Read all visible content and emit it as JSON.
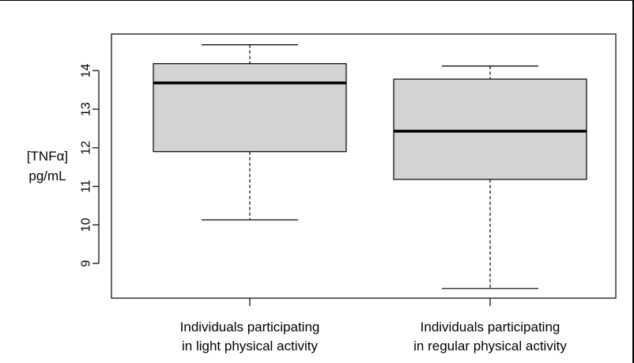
{
  "chart_data": {
    "type": "box",
    "ylabel_lines": [
      "[TNFα]",
      "pg/mL"
    ],
    "ylim": [
      8.1,
      14.95
    ],
    "yticks": [
      9,
      10,
      11,
      12,
      13,
      14
    ],
    "categories": [
      [
        "Individuals participating",
        "in light physical activity"
      ],
      [
        "Individuals participating",
        "in regular physical activity"
      ]
    ],
    "boxes": [
      {
        "min": 10.13,
        "q1": 11.9,
        "median": 13.68,
        "q3": 14.18,
        "max": 14.67
      },
      {
        "min": 8.35,
        "q1": 11.18,
        "median": 12.43,
        "q3": 13.78,
        "max": 14.12
      }
    ],
    "box_fill": "#d3d3d3",
    "grid": false,
    "legend": "none"
  }
}
